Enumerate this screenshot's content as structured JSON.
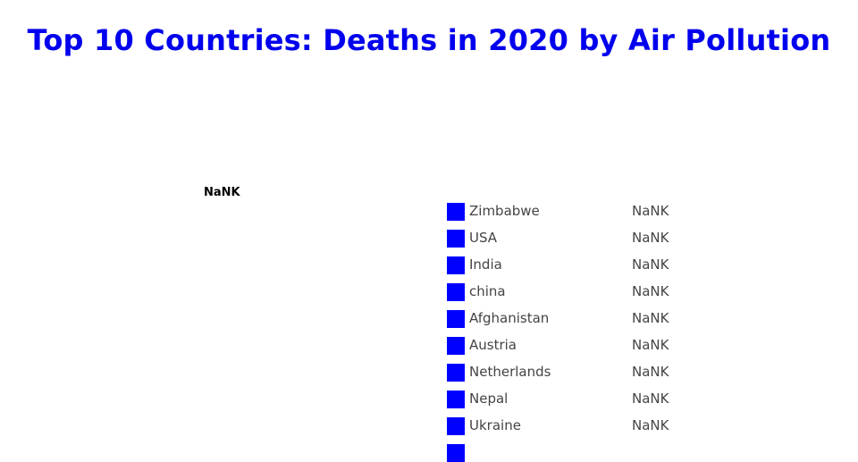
{
  "chart_data": {
    "type": "pie",
    "title": "Top 10 Countries: Deaths in 2020 by Air Pollution",
    "center_label": "NaNK",
    "legend_position": "right",
    "colors": [
      "#0000ff",
      "#0000ff",
      "#0000ff",
      "#0000ff",
      "#0000ff",
      "#0000ff",
      "#0000ff",
      "#0000ff",
      "#0000ff",
      "#0000ff"
    ],
    "categories": [
      "Zimbabwe",
      "USA",
      "India",
      "china",
      "Afghanistan",
      "Austria",
      "Netherlands",
      "Nepal",
      "Ukraine",
      ""
    ],
    "value_labels": [
      "NaNK",
      "NaNK",
      "NaNK",
      "NaNK",
      "NaNK",
      "NaNK",
      "NaNK",
      "NaNK",
      "NaNK",
      ""
    ],
    "values": [
      null,
      null,
      null,
      null,
      null,
      null,
      null,
      null,
      null,
      null
    ]
  }
}
